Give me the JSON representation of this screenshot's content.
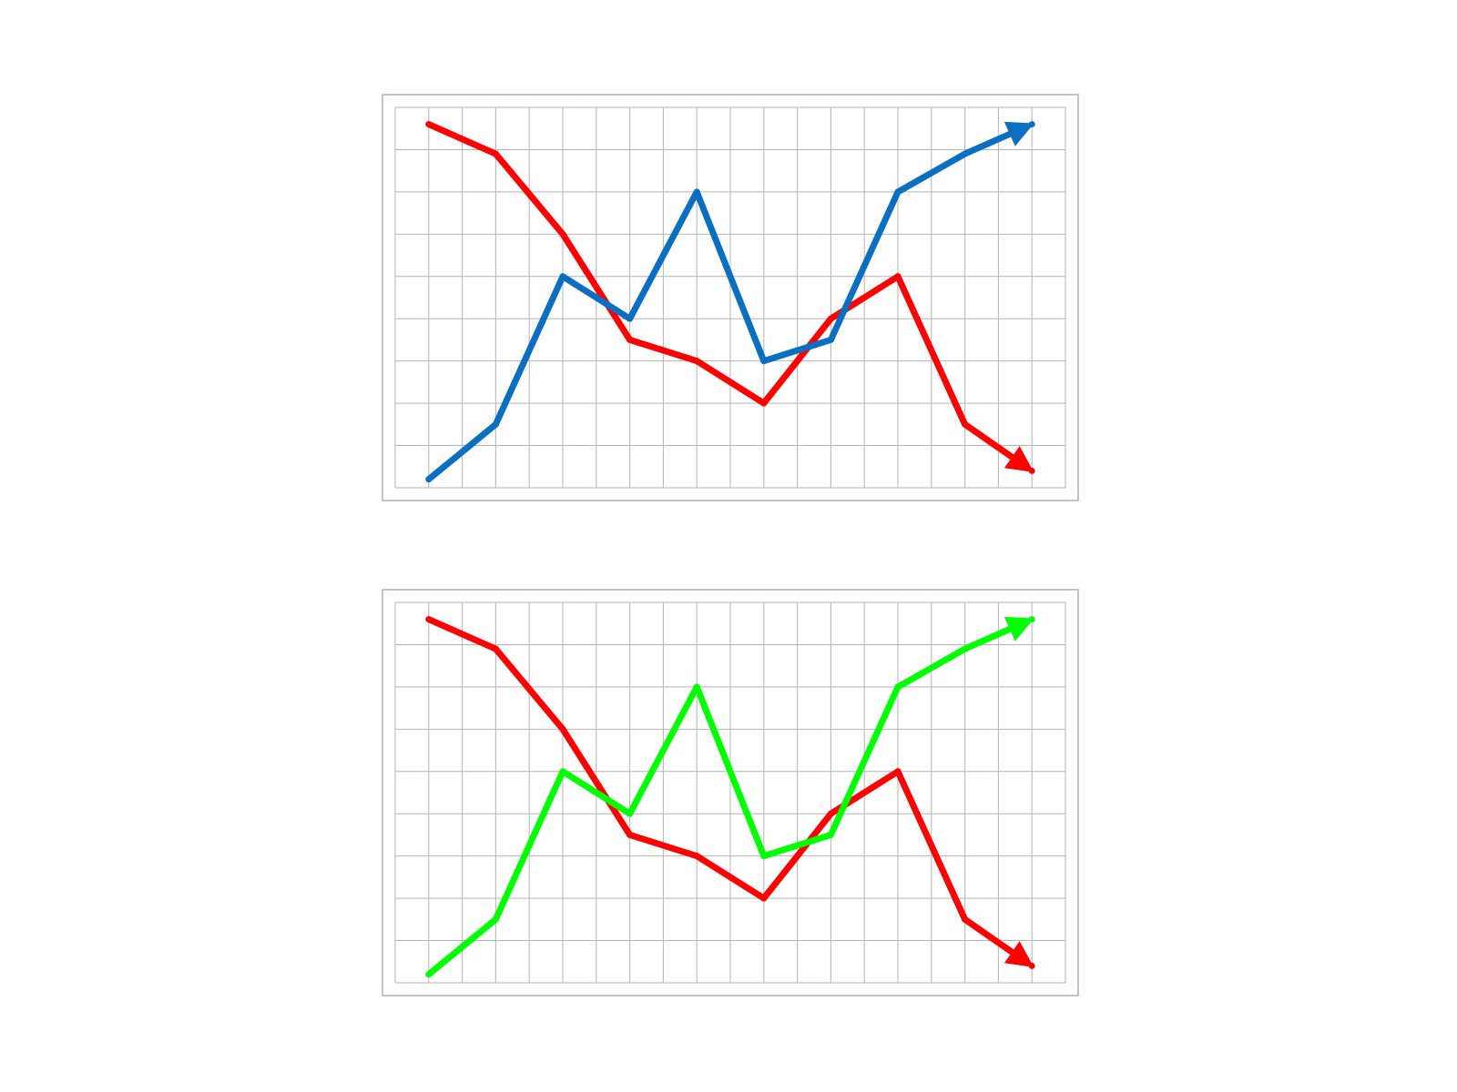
{
  "chart_data": [
    {
      "type": "line",
      "title": "",
      "xlabel": "",
      "ylabel": "",
      "grid": true,
      "legend": "none",
      "x": [
        0,
        2,
        4,
        6,
        8,
        10,
        12,
        14,
        16,
        18
      ],
      "xlim": [
        -1,
        19
      ],
      "ylim": [
        0,
        9
      ],
      "series": [
        {
          "color": "#ff0000",
          "arrow_end": true,
          "values": [
            8.6,
            7.9,
            6.0,
            3.5,
            3.0,
            2.0,
            4.0,
            5.0,
            1.5,
            0.4
          ]
        },
        {
          "color": "#0a6fc0",
          "arrow_end": true,
          "values": [
            0.2,
            1.5,
            5.0,
            4.0,
            7.0,
            3.0,
            3.5,
            7.0,
            7.9,
            8.6
          ]
        }
      ]
    },
    {
      "type": "line",
      "title": "",
      "xlabel": "",
      "ylabel": "",
      "grid": true,
      "legend": "none",
      "x": [
        0,
        2,
        4,
        6,
        8,
        10,
        12,
        14,
        16,
        18
      ],
      "xlim": [
        -1,
        19
      ],
      "ylim": [
        0,
        9
      ],
      "series": [
        {
          "color": "#ff0000",
          "arrow_end": true,
          "values": [
            8.6,
            7.9,
            6.0,
            3.5,
            3.0,
            2.0,
            4.0,
            5.0,
            1.5,
            0.4
          ]
        },
        {
          "color": "#00ff00",
          "arrow_end": true,
          "values": [
            0.2,
            1.5,
            5.0,
            4.0,
            7.0,
            3.0,
            3.5,
            7.0,
            7.9,
            8.6
          ]
        }
      ]
    }
  ]
}
